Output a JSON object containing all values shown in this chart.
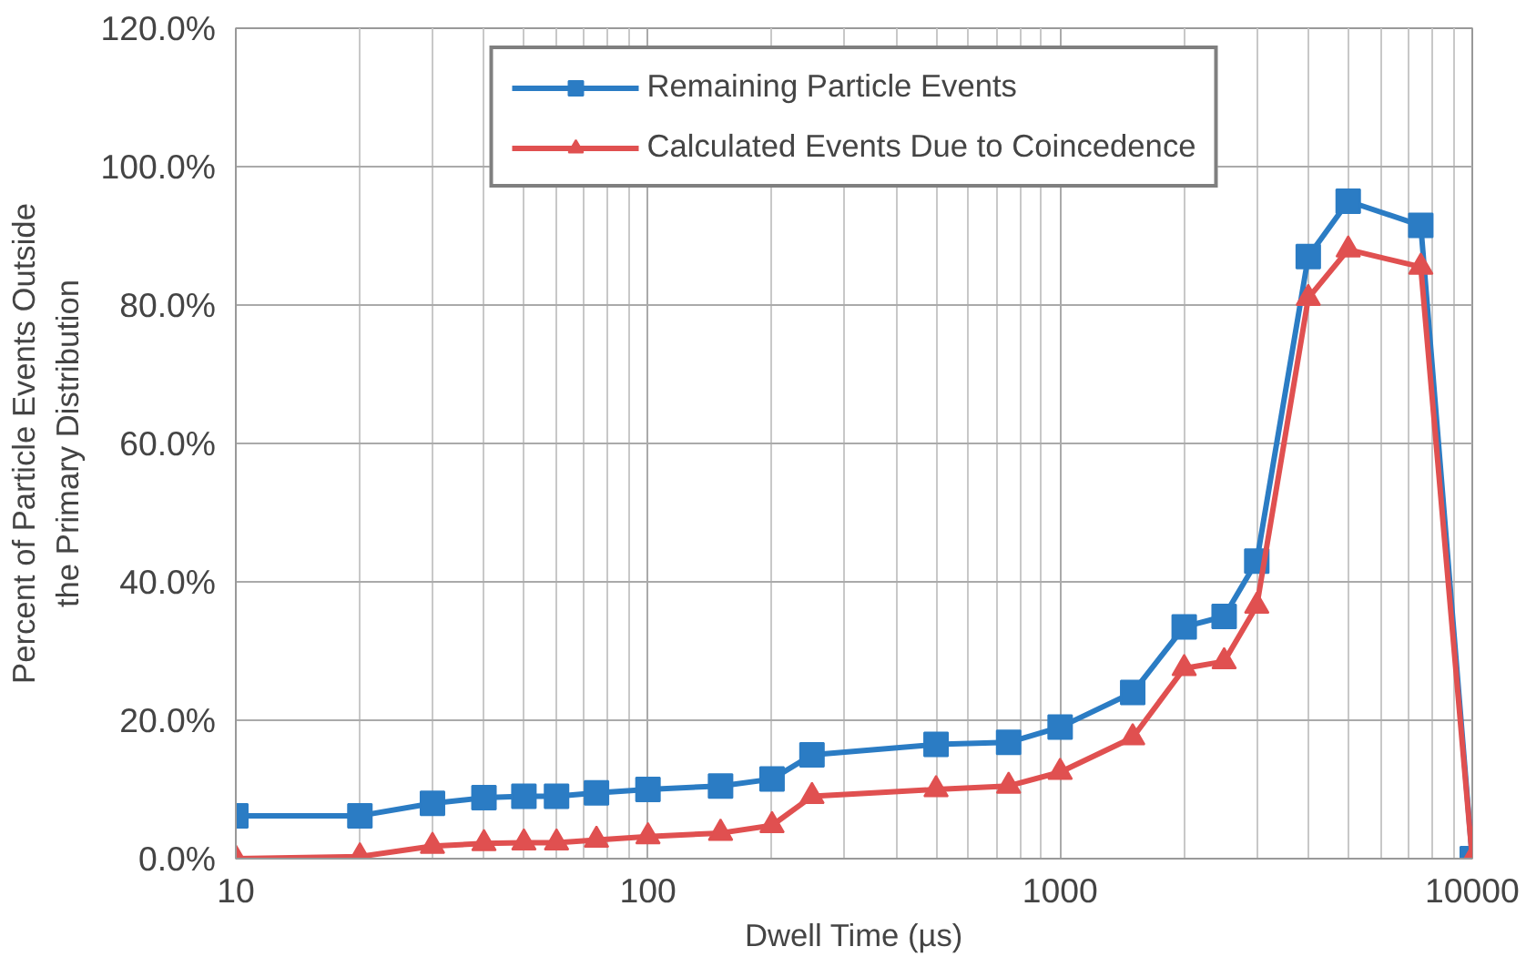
{
  "chart_data": {
    "type": "line",
    "xlabel": "Dwell Time (µs)",
    "ylabel": "Percent of Particle Events Outside\nthe Primary Distribution",
    "log": "x",
    "xlim": [
      10,
      10000
    ],
    "xticks": [
      10,
      100,
      1000,
      10000
    ],
    "ylim": [
      0,
      120
    ],
    "yticks": [
      {
        "value": 0,
        "label": "0.0%"
      },
      {
        "value": 20,
        "label": "20.0%"
      },
      {
        "value": 40,
        "label": "40.0%"
      },
      {
        "value": 60,
        "label": "60.0%"
      },
      {
        "value": 80,
        "label": "80.0%"
      },
      {
        "value": 100,
        "label": "100.0%"
      },
      {
        "value": 120,
        "label": "120.0%"
      }
    ],
    "x": [
      10,
      20,
      30,
      40,
      50,
      60,
      75,
      100,
      150,
      200,
      250,
      500,
      750,
      1000,
      1500,
      2000,
      2500,
      3000,
      4000,
      5000,
      7500,
      10000
    ],
    "grid": true,
    "legend": "top",
    "line_style": "solid",
    "series": [
      {
        "name": "Remaining Particle Events",
        "color": "#2b7cc4",
        "marker": "square",
        "values": [
          6.2,
          6.2,
          8,
          8.8,
          9,
          9,
          9.5,
          10,
          10.5,
          11.5,
          15,
          16.5,
          16.8,
          19,
          24,
          33.5,
          35,
          43,
          87,
          95,
          91.5,
          0
        ]
      },
      {
        "name": "Calculated Events Due to Coincedence",
        "color": "#e05050",
        "marker": "triangle",
        "values": [
          0,
          0.3,
          1.8,
          2.2,
          2.3,
          2.3,
          2.7,
          3.2,
          3.7,
          4.8,
          9,
          10,
          10.5,
          12.5,
          17.5,
          27.5,
          28.5,
          36.5,
          81,
          88,
          85.5,
          0
        ]
      }
    ]
  }
}
